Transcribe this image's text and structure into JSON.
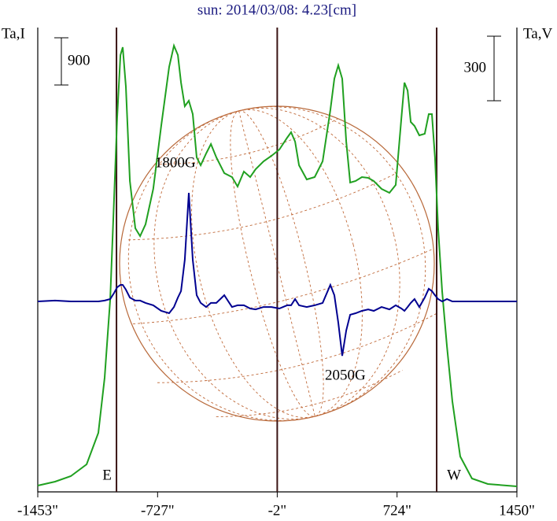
{
  "chart_data": {
    "type": "line",
    "title": "sun: 2014/03/08: 4.23[cm]",
    "y_label": "Ta,I",
    "y2_label": "Ta,V",
    "y_scale_bar": 900,
    "y2_scale_bar": 300,
    "vlines": [
      -976,
      -2,
      964
    ],
    "vline_color": "#3a1414",
    "limb_labels": [
      "E",
      "W"
    ],
    "annotations": [
      {
        "text": "1800G",
        "x": -620,
        "y": 640,
        "axis": "y2"
      },
      {
        "text": "2050G",
        "x": 410,
        "y": -348,
        "axis": "y2"
      }
    ],
    "xlim": [
      -1453,
      1450
    ],
    "xticks": [
      {
        "value": -1453,
        "label": "-1453\""
      },
      {
        "value": -727,
        "label": "-727\""
      },
      {
        "value": -2,
        "label": "-2\""
      },
      {
        "value": 724,
        "label": "724\""
      },
      {
        "value": 1450,
        "label": "1450\""
      }
    ],
    "ylim": [
      0,
      8850
    ],
    "y2lim": [
      -886,
      1274
    ],
    "x": [
      -1453,
      -1348,
      -1253,
      -1157,
      -1086,
      -1048,
      -1014,
      -990,
      -972,
      -952,
      -938,
      -919,
      -895,
      -862,
      -833,
      -800,
      -753,
      -705,
      -657,
      -628,
      -604,
      -585,
      -562,
      -538,
      -514,
      -490,
      -466,
      -433,
      -404,
      -371,
      -323,
      -276,
      -242,
      -204,
      -166,
      -133,
      -85,
      -37,
      11,
      58,
      82,
      106,
      130,
      177,
      225,
      273,
      320,
      344,
      368,
      392,
      416,
      440,
      473,
      511,
      549,
      583,
      630,
      678,
      716,
      750,
      769,
      788,
      807,
      830,
      859,
      892,
      916,
      935,
      954,
      973,
      997,
      1026,
      1059,
      1107,
      1178,
      1274,
      1450
    ],
    "series": [
      {
        "name": "Ta,I",
        "color": "#20a020",
        "axis": "y",
        "values": [
          120,
          195,
          300,
          525,
          1125,
          2175,
          3675,
          5625,
          7125,
          8325,
          8475,
          7725,
          5925,
          5025,
          4875,
          5100,
          5775,
          6975,
          8100,
          8505,
          8325,
          7800,
          7350,
          7455,
          7200,
          6375,
          6225,
          6450,
          6630,
          6375,
          6075,
          6000,
          5820,
          6105,
          6000,
          6150,
          6300,
          6405,
          6525,
          6750,
          6855,
          6675,
          6225,
          5955,
          6000,
          6300,
          7275,
          7875,
          8130,
          7875,
          6675,
          5895,
          5925,
          6000,
          5985,
          5925,
          5775,
          5700,
          5850,
          7125,
          7800,
          7650,
          7050,
          6975,
          6795,
          6825,
          7200,
          7200,
          6375,
          5025,
          3825,
          2775,
          1725,
          675,
          255,
          150,
          105
        ]
      },
      {
        "name": "Ta,V",
        "color": "#000090",
        "axis": "y2",
        "values": [
          0,
          4,
          0,
          0,
          0,
          4,
          11,
          40,
          66,
          77,
          77,
          55,
          18,
          4,
          4,
          -7,
          -18,
          -44,
          -55,
          -26,
          18,
          48,
          194,
          505,
          194,
          29,
          -7,
          -26,
          -7,
          -7,
          29,
          -26,
          -18,
          -18,
          -33,
          -37,
          -26,
          -26,
          -33,
          -18,
          -18,
          11,
          -18,
          -26,
          -18,
          -7,
          77,
          29,
          -99,
          -253,
          -135,
          -62,
          -55,
          -44,
          -37,
          -44,
          -26,
          -37,
          -18,
          -33,
          -44,
          -26,
          -7,
          11,
          -26,
          18,
          59,
          48,
          29,
          11,
          0,
          11,
          0,
          0,
          0,
          0,
          0
        ]
      }
    ]
  }
}
